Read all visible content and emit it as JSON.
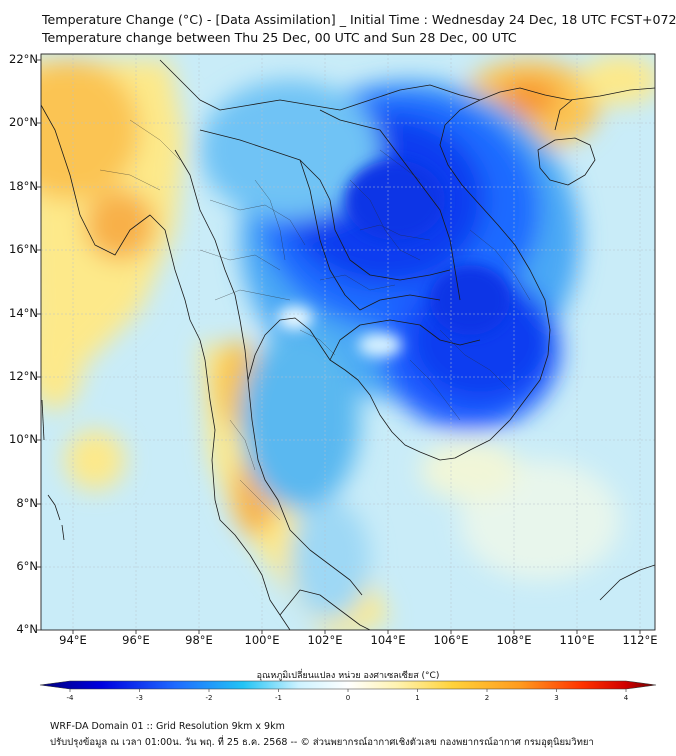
{
  "title": {
    "line1": "Temperature Change (°C) - [Data Assimilation] _ Initial Time : Wednesday 24 Dec, 18 UTC FCST+072",
    "line2": "Temperature change between Thu 25 Dec, 00 UTC and Sun 28 Dec, 00 UTC"
  },
  "map": {
    "lat_range": [
      4,
      22
    ],
    "lon_range": [
      93,
      112.5
    ],
    "lat_ticks": [
      "22°N",
      "20°N",
      "18°N",
      "16°N",
      "14°N",
      "12°N",
      "10°N",
      "8°N",
      "6°N",
      "4°N"
    ],
    "lon_ticks": [
      "94°E",
      "96°E",
      "98°E",
      "100°E",
      "102°E",
      "104°E",
      "106°E",
      "108°E",
      "110°E",
      "112°E"
    ],
    "fill_type": "temperature-change-field",
    "overlay": "country-and-province-boundaries",
    "gridlines": true
  },
  "colorbar": {
    "title": "อุณหภูมิเปลี่ยนแปลง หน่วย องศาเซลเซียส (°C)",
    "tick_labels": [
      "-4",
      "-3",
      "-2",
      "-1",
      "0",
      "1",
      "2",
      "3",
      "4"
    ],
    "range": [
      -4,
      4
    ],
    "colors": [
      "#00007a",
      "#0000e0",
      "#1f6bff",
      "#23c4f5",
      "#cdf2ff",
      "#ffffff",
      "#fff3b0",
      "#ffd23a",
      "#ff9a1e",
      "#ff3300",
      "#d10000",
      "#6a0000"
    ]
  },
  "footer": {
    "line1": "WRF-DA Domain 01 :: Grid Resolution 9km x 9km",
    "line2": "ปรับปรุงข้อมูล ณ เวลา 01:00น. วัน พฤ. ที่ 25 ธ.ค. 2568 -- © ส่วนพยากรณ์อากาศเชิงตัวเลข กองพยากรณ์อากาศ กรมอุตุนิยมวิทยา"
  }
}
